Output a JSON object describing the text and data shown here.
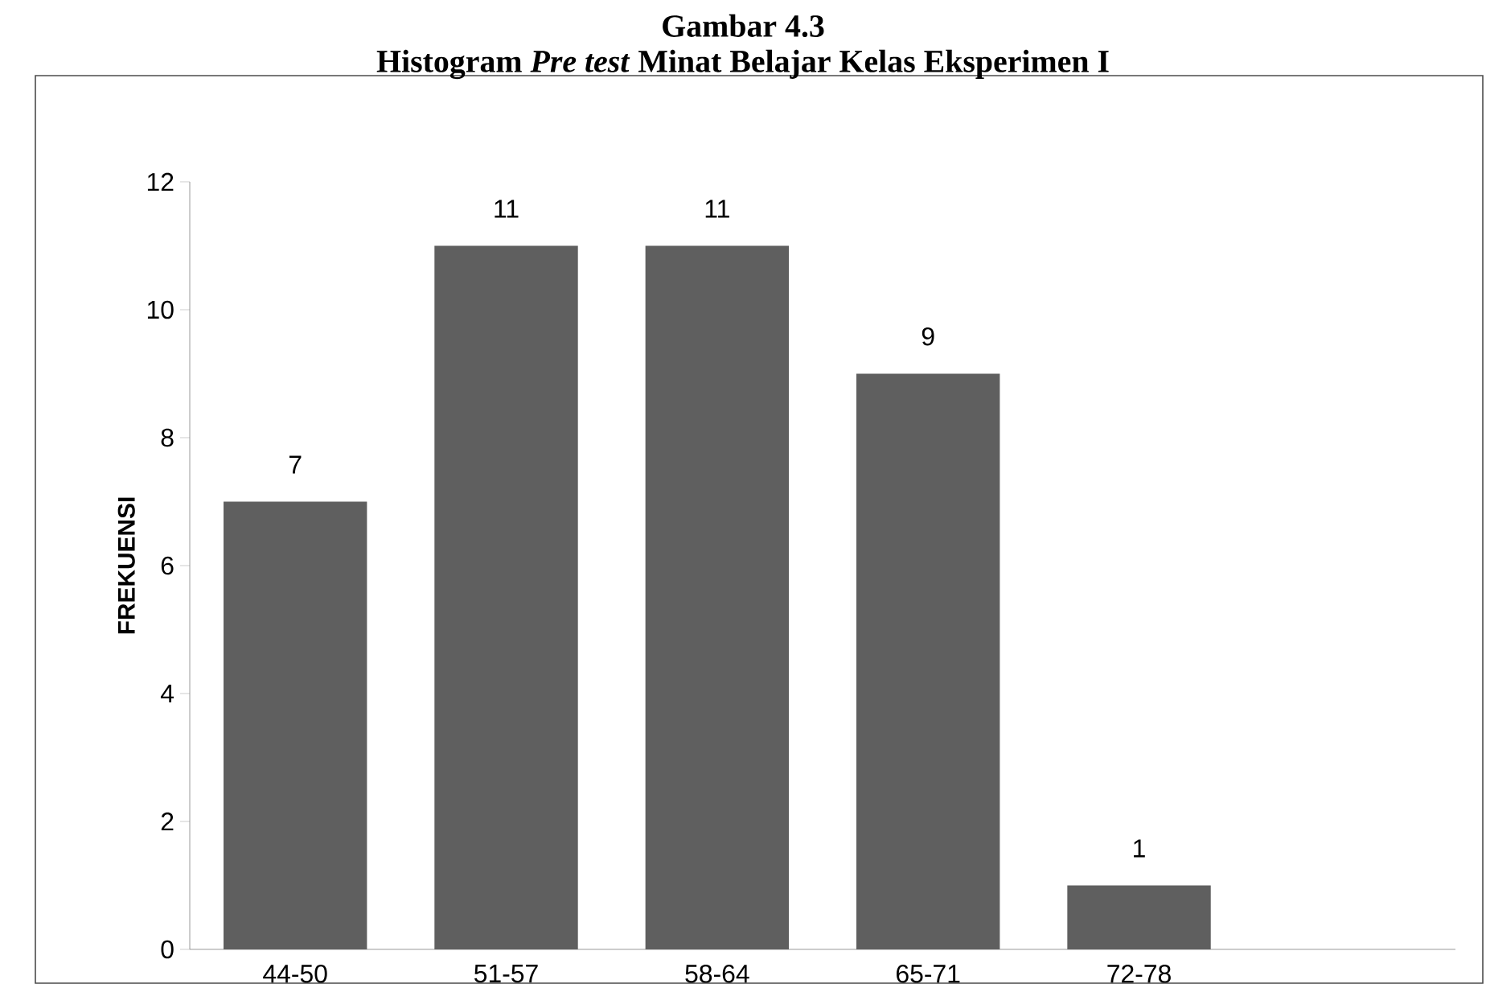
{
  "chart_data": {
    "type": "bar",
    "title": "Gambar 4.3",
    "subtitle": "Histogram *Pre test* Minat Belajar Kelas Eksperimen I",
    "ylabel": "FREKUENSI",
    "categories": [
      "44-50",
      "51-57",
      "58-64",
      "65-71",
      "72-78",
      null
    ],
    "values": [
      7,
      11,
      11,
      9,
      1,
      null
    ],
    "color": "#5f5f5f",
    "ylim": [
      0,
      12
    ],
    "yticks": [
      0,
      2,
      4,
      6,
      8,
      10,
      12
    ],
    "data_labels": true
  }
}
